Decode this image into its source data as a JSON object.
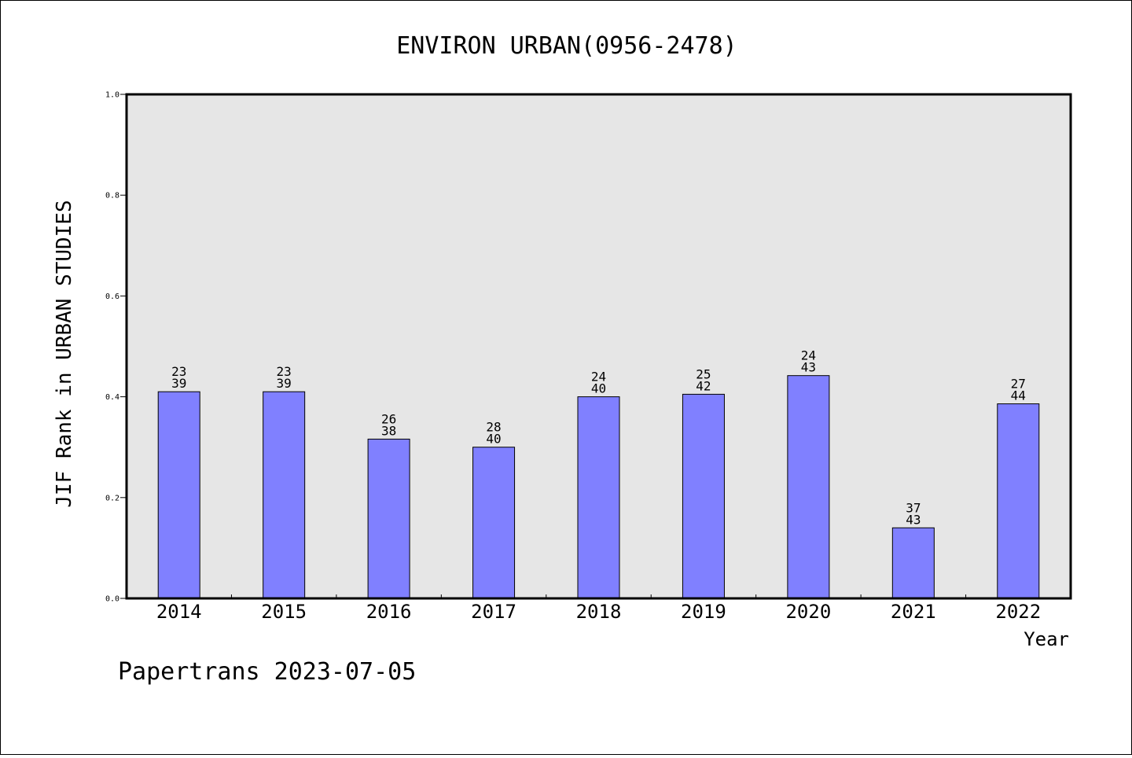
{
  "chart_data": {
    "type": "bar",
    "title": "ENVIRON URBAN(0956-2478)",
    "ylabel": "JIF Rank in URBAN STUDIES",
    "xlabel": "Year",
    "categories": [
      "2014",
      "2015",
      "2016",
      "2017",
      "2018",
      "2019",
      "2020",
      "2021",
      "2022"
    ],
    "values": [
      0.41,
      0.41,
      0.316,
      0.3,
      0.4,
      0.405,
      0.442,
      0.14,
      0.386
    ],
    "rank_labels": [
      {
        "rank": "23",
        "total": "39"
      },
      {
        "rank": "23",
        "total": "39"
      },
      {
        "rank": "26",
        "total": "38"
      },
      {
        "rank": "28",
        "total": "40"
      },
      {
        "rank": "24",
        "total": "40"
      },
      {
        "rank": "25",
        "total": "42"
      },
      {
        "rank": "24",
        "total": "43"
      },
      {
        "rank": "37",
        "total": "43"
      },
      {
        "rank": "27",
        "total": "44"
      }
    ],
    "ylim": [
      0,
      1.0
    ],
    "yticks": [
      "0.0",
      "0.2",
      "0.4",
      "0.6",
      "0.8",
      "1.0"
    ],
    "grid": false,
    "colors": {
      "bar": "#8080ff",
      "plot_background": "#e6e6e6",
      "axis": "#000000"
    }
  },
  "footer": "Papertrans 2023-07-05"
}
